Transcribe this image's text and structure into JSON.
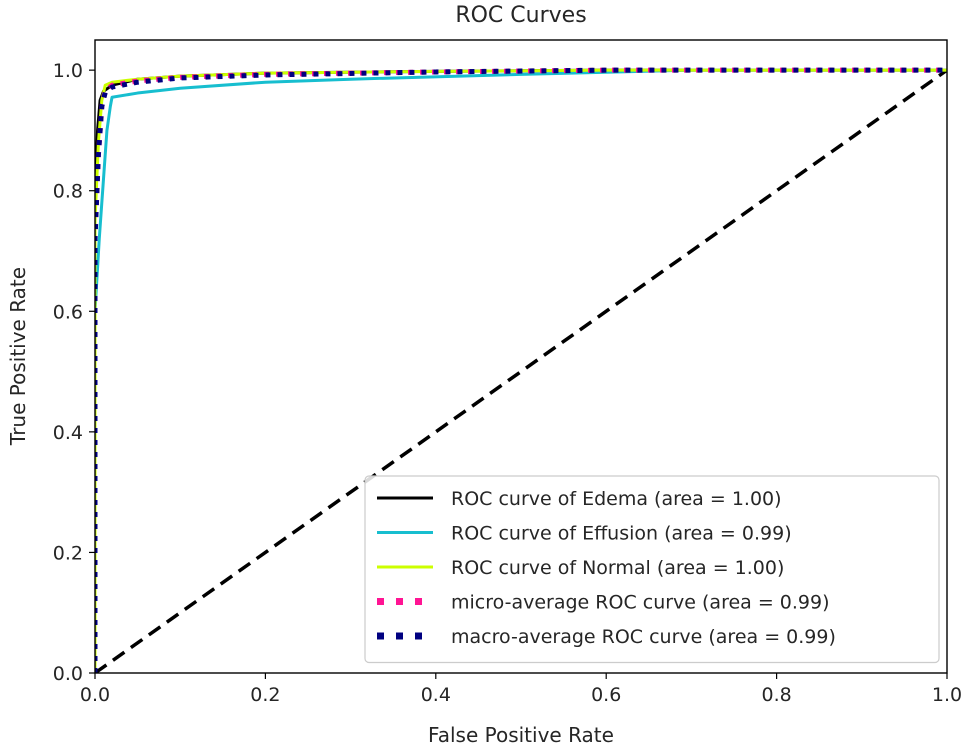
{
  "chart_data": {
    "type": "line",
    "title": "ROC Curves",
    "xlabel": "False Positive Rate",
    "ylabel": "True Positive Rate",
    "xlim": [
      0.0,
      1.0
    ],
    "ylim": [
      0.0,
      1.05
    ],
    "xticks": [
      "0.0",
      "0.2",
      "0.4",
      "0.6",
      "0.8",
      "1.0"
    ],
    "yticks": [
      "0.0",
      "0.2",
      "0.4",
      "0.6",
      "0.8",
      "1.0"
    ],
    "grid": false,
    "legend_position": "lower-right",
    "reference_line": {
      "x": [
        0.0,
        1.0
      ],
      "y": [
        0.0,
        1.0
      ],
      "color": "#000000",
      "style": "dashed"
    },
    "series": [
      {
        "name": "ROC curve of Edema (area = 1.00)",
        "color": "#000000",
        "style": "solid",
        "x": [
          0.0,
          0.0,
          0.003,
          0.006,
          0.01,
          0.02,
          0.05,
          0.1,
          0.2,
          0.4,
          0.6,
          0.8,
          1.0
        ],
        "y": [
          0.0,
          0.8,
          0.9,
          0.95,
          0.965,
          0.975,
          0.985,
          0.99,
          0.995,
          0.998,
          1.0,
          1.0,
          1.0
        ]
      },
      {
        "name": "ROC curve of Effusion (area = 0.99)",
        "color": "#17becf",
        "style": "solid",
        "x": [
          0.0,
          0.0,
          0.005,
          0.01,
          0.014,
          0.018,
          0.02,
          0.05,
          0.1,
          0.2,
          0.3,
          0.5,
          0.7,
          1.0
        ],
        "y": [
          0.0,
          0.6,
          0.72,
          0.82,
          0.9,
          0.94,
          0.955,
          0.962,
          0.97,
          0.98,
          0.985,
          0.993,
          1.0,
          1.0
        ]
      },
      {
        "name": "ROC curve of Normal (area = 1.00)",
        "color": "#ccff00",
        "style": "solid",
        "x": [
          0.0,
          0.0,
          0.004,
          0.008,
          0.012,
          0.02,
          0.05,
          0.1,
          0.2,
          0.4,
          0.6,
          1.0
        ],
        "y": [
          0.0,
          0.75,
          0.88,
          0.95,
          0.975,
          0.98,
          0.985,
          0.99,
          0.995,
          0.998,
          1.0,
          1.0
        ]
      },
      {
        "name": "micro-average ROC curve (area = 0.99)",
        "color": "#ff1493",
        "style": "dotted",
        "x": [
          0.0,
          0.0,
          0.004,
          0.008,
          0.012,
          0.02,
          0.05,
          0.1,
          0.2,
          0.4,
          0.6,
          1.0
        ],
        "y": [
          0.0,
          0.72,
          0.86,
          0.94,
          0.965,
          0.975,
          0.982,
          0.988,
          0.993,
          0.997,
          1.0,
          1.0
        ]
      },
      {
        "name": "macro-average ROC curve (area = 0.99)",
        "color": "#000080",
        "style": "dotted",
        "x": [
          0.0,
          0.0,
          0.004,
          0.008,
          0.012,
          0.02,
          0.05,
          0.1,
          0.2,
          0.4,
          0.6,
          1.0
        ],
        "y": [
          0.0,
          0.72,
          0.86,
          0.94,
          0.963,
          0.972,
          0.98,
          0.987,
          0.992,
          0.997,
          1.0,
          1.0
        ]
      }
    ]
  }
}
